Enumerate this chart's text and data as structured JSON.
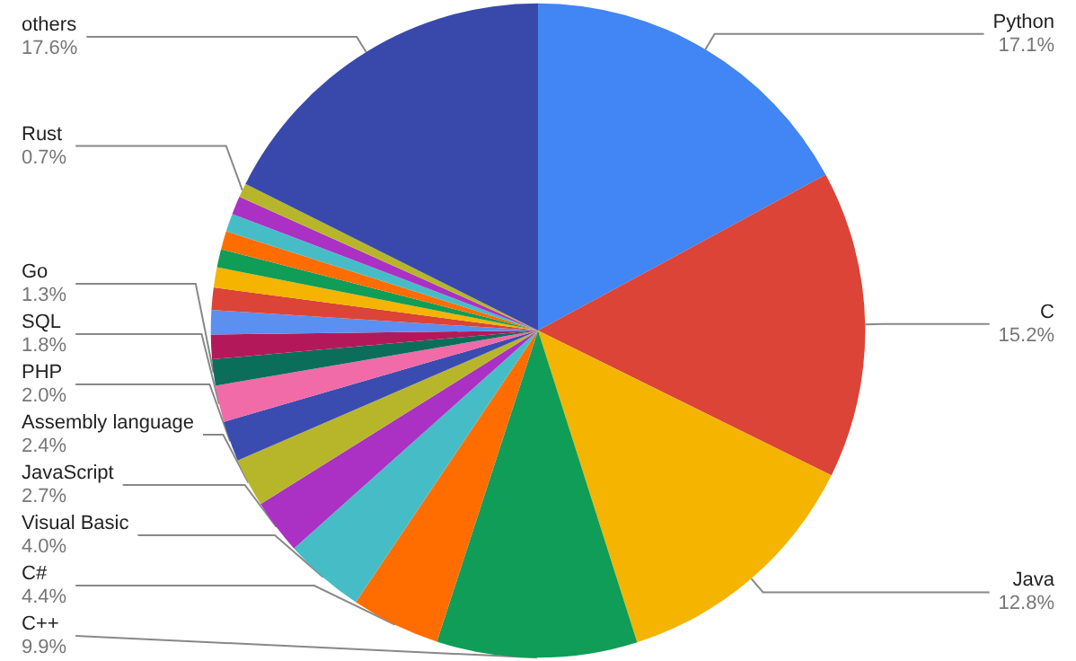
{
  "chart_data": {
    "type": "pie",
    "categories": [
      "Python",
      "C",
      "Java",
      "C++",
      "C#",
      "Visual Basic",
      "JavaScript",
      "Assembly language",
      "PHP",
      "SQL",
      "Go",
      null,
      null,
      null,
      null,
      null,
      null,
      null,
      null,
      "Rust",
      "others"
    ],
    "values": [
      17.1,
      15.2,
      12.8,
      9.9,
      4.4,
      4.0,
      2.7,
      2.4,
      2.0,
      1.8,
      1.3,
      1.2,
      1.2,
      1.1,
      1.0,
      0.9,
      0.9,
      0.9,
      0.9,
      0.7,
      17.6
    ],
    "value_labels": [
      "17.1%",
      "15.2%",
      "12.8%",
      "9.9%",
      "4.4%",
      "4.0%",
      "2.7%",
      "2.4%",
      "2.0%",
      "1.8%",
      "1.3%",
      null,
      null,
      null,
      null,
      null,
      null,
      null,
      null,
      "0.7%",
      "17.6%"
    ],
    "colors": [
      "#4285f4",
      "#db4437",
      "#f4b400",
      "#0f9d58",
      "#ff6d00",
      "#46bdc6",
      "#ab30c4",
      "#b7b62a",
      "#3b4cb0",
      "#f06ba8",
      "#0b6e5a",
      "#b3195a",
      "#5b8ff0",
      "#db4437",
      "#f4b400",
      "#0f9d58",
      "#ff6d00",
      "#46bdc6",
      "#ab30c4",
      "#b7b62a",
      "#3949ab"
    ],
    "legend": false
  }
}
